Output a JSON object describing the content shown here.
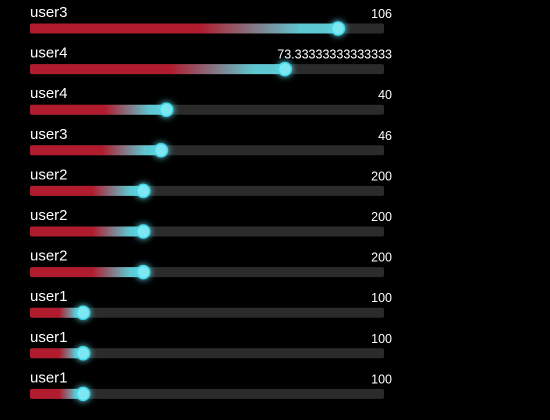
{
  "chart_data": {
    "type": "bar",
    "orientation": "horizontal",
    "categories": [
      "user3",
      "user4",
      "user4",
      "user3",
      "user2",
      "user2",
      "user2",
      "user1",
      "user1",
      "user1"
    ],
    "bar_fill_fraction": [
      0.87,
      0.72,
      0.385,
      0.37,
      0.32,
      0.32,
      0.32,
      0.15,
      0.15,
      0.15
    ],
    "series": [
      {
        "values": [
          "106",
          "73.33333333333333",
          "40",
          "46",
          "200",
          "200",
          "200",
          "100",
          "100",
          "100"
        ]
      }
    ],
    "title": "",
    "xlabel": "",
    "ylabel": "",
    "legend": "none",
    "grid": false,
    "colors": {
      "background": "#000000",
      "track": "#2b2b2b",
      "bar_start": "#b01c2e",
      "bar_end": "#5ec8d2",
      "handle": "#7ee8f2",
      "handle_glow": "#3fd8ea",
      "text": "#ffffff"
    }
  }
}
